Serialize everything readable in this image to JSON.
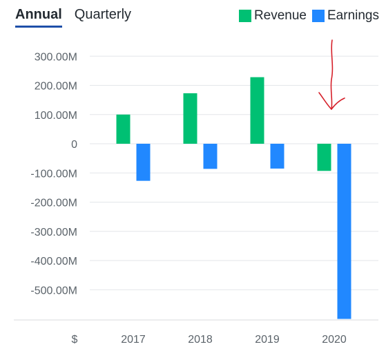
{
  "tabs": [
    {
      "label": "Annual",
      "active": true
    },
    {
      "label": "Quarterly",
      "active": false
    }
  ],
  "legend": [
    {
      "label": "Revenue",
      "color": "#00c073"
    },
    {
      "label": "Earnings",
      "color": "#2188ff"
    }
  ],
  "currency_label": "$",
  "chart_data": {
    "type": "bar",
    "categories": [
      "2017",
      "2018",
      "2019",
      "2020"
    ],
    "series": [
      {
        "name": "Revenue",
        "color": "#00c073",
        "values": [
          100,
          173,
          228,
          -93
        ]
      },
      {
        "name": "Earnings",
        "color": "#2188ff",
        "values": [
          -127,
          -86,
          -85,
          -600
        ]
      }
    ],
    "unit": "M",
    "yticks": [
      300,
      200,
      100,
      0,
      -100,
      -200,
      -300,
      -400,
      -500
    ],
    "ytick_labels": [
      "300.00M",
      "200.00M",
      "100.00M",
      "0",
      "-100.00M",
      "-200.00M",
      "-300.00M",
      "-400.00M",
      "-500.00M"
    ],
    "ylim": [
      -600,
      330
    ],
    "grid": true,
    "legend_position": "top-right",
    "annotation": {
      "type": "hand-drawn arrow",
      "color": "#d6202a",
      "target_category": "2020"
    }
  }
}
